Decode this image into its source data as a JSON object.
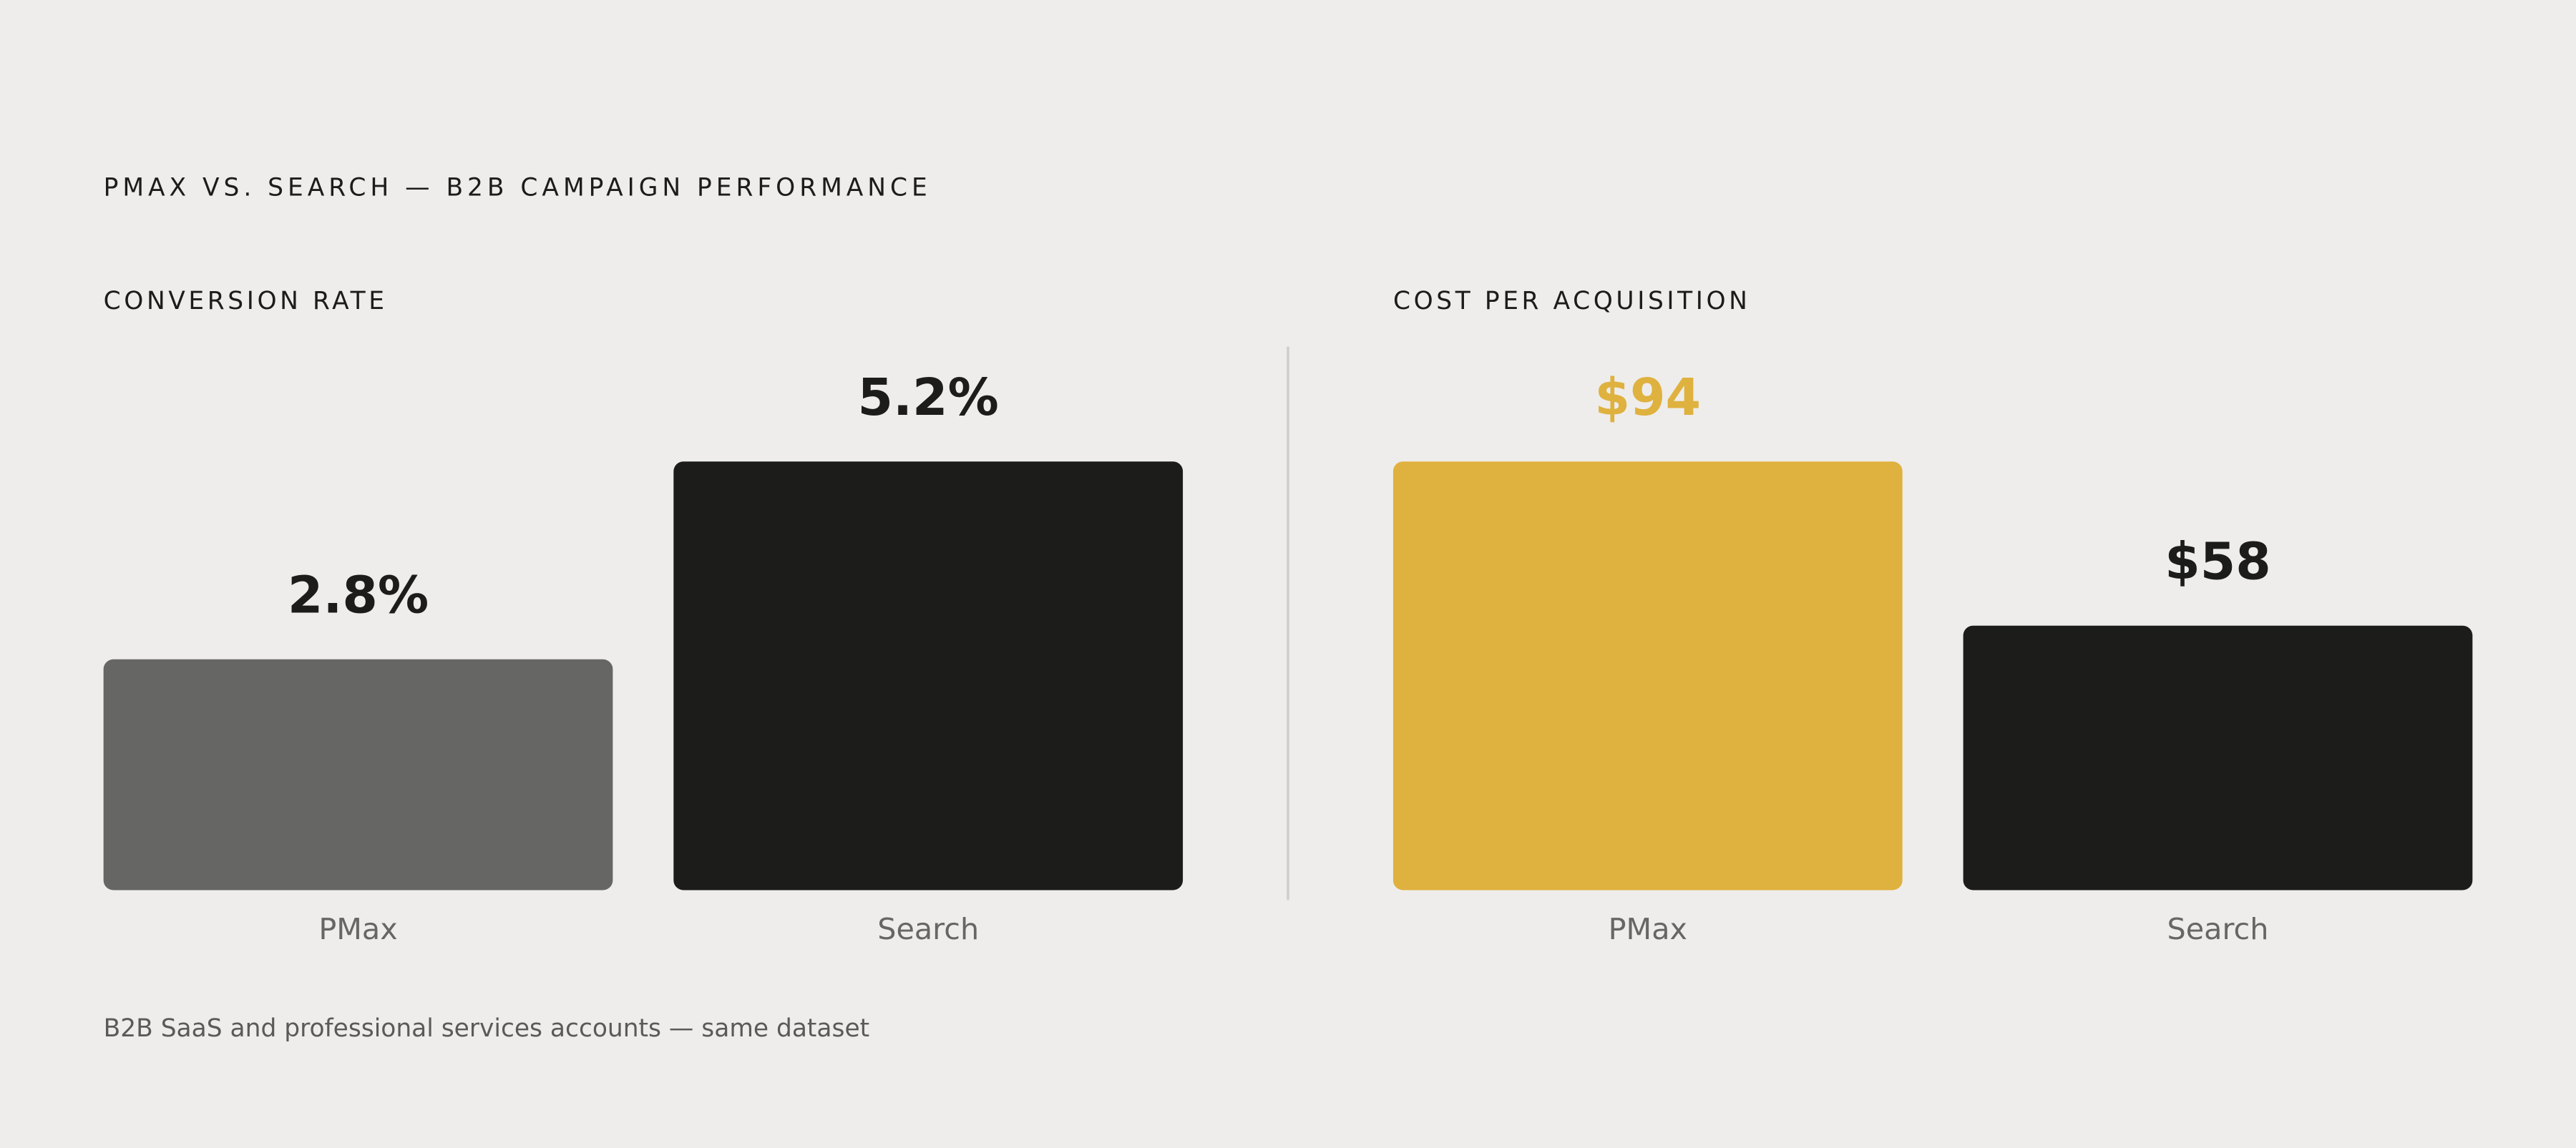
{
  "title": "PMAX VS. SEARCH — B2B CAMPAIGN PERFORMANCE",
  "chart_data": [
    {
      "type": "bar",
      "title": "CONVERSION RATE",
      "categories": [
        "PMax",
        "Search"
      ],
      "values": [
        2.8,
        5.2
      ],
      "value_labels": [
        "2.8%",
        "5.2%"
      ],
      "colors": [
        "#666664",
        "#1c1c1b"
      ],
      "value_label_colors": [
        "#1c1c1b",
        "#1c1c1b"
      ]
    },
    {
      "type": "bar",
      "title": "COST PER ACQUISITION",
      "categories": [
        "PMax",
        "Search"
      ],
      "values": [
        94,
        58
      ],
      "value_labels": [
        "$94",
        "$58"
      ],
      "colors": [
        "#dfb13e",
        "#1c1c1b"
      ],
      "value_label_colors": [
        "#dfb13e",
        "#1c1c1b"
      ]
    }
  ],
  "footnote": "B2B SaaS and professional services accounts — same dataset"
}
